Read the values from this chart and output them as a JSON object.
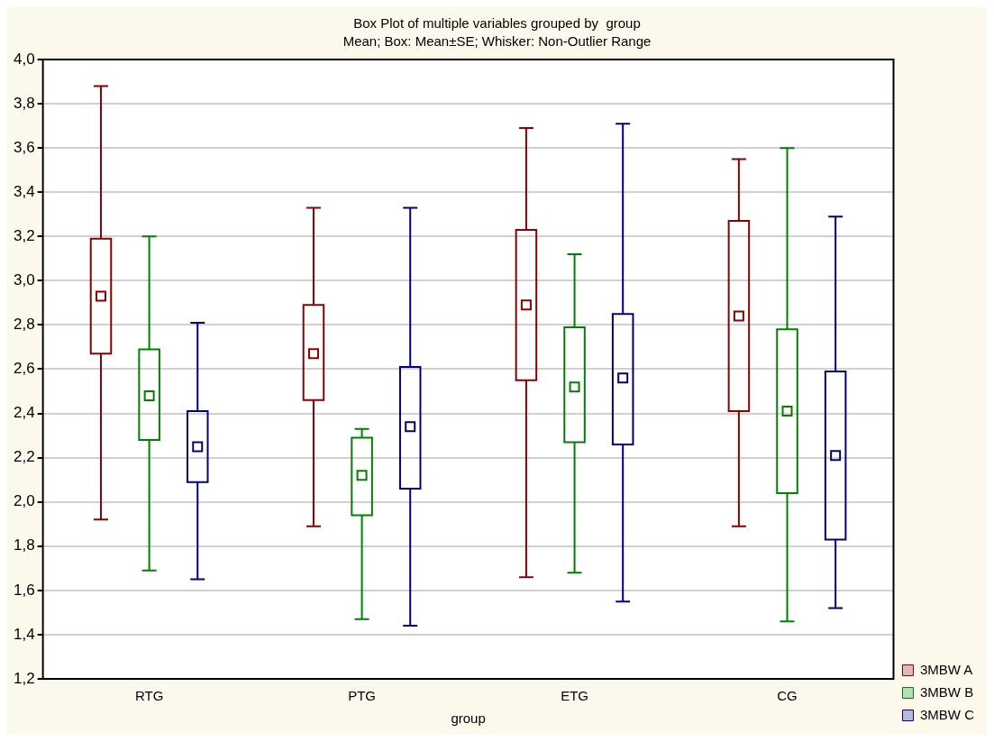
{
  "chart_data": {
    "type": "box",
    "title": "Box Plot of multiple variables grouped by  group",
    "subtitle": "Mean; Box: Mean±SE; Whisker: Non-Outlier Range",
    "xlabel": "group",
    "categories": [
      "RTG",
      "PTG",
      "ETG",
      "CG"
    ],
    "ylim": [
      1.2,
      4.0
    ],
    "yticks": [
      {
        "value": 1.2,
        "label": "1,2"
      },
      {
        "value": 1.4,
        "label": "1,4"
      },
      {
        "value": 1.6,
        "label": "1,6"
      },
      {
        "value": 1.8,
        "label": "1,8"
      },
      {
        "value": 2.0,
        "label": "2,0"
      },
      {
        "value": 2.2,
        "label": "2,2"
      },
      {
        "value": 2.4,
        "label": "2,4"
      },
      {
        "value": 2.6,
        "label": "2,6"
      },
      {
        "value": 2.8,
        "label": "2,8"
      },
      {
        "value": 3.0,
        "label": "3,0"
      },
      {
        "value": 3.2,
        "label": "3,2"
      },
      {
        "value": 3.4,
        "label": "3,4"
      },
      {
        "value": 3.6,
        "label": "3,6"
      },
      {
        "value": 3.8,
        "label": "3,8"
      },
      {
        "value": 4.0,
        "label": "4,0"
      }
    ],
    "grid": "y",
    "legend": "bottom right",
    "marker": "square",
    "series": [
      {
        "name": "3MBW A",
        "color": "#8b0000",
        "boxes": [
          {
            "low": 1.92,
            "q1": 2.67,
            "median": 2.93,
            "q3": 3.19,
            "high": 3.88
          },
          {
            "low": 1.89,
            "q1": 2.46,
            "median": 2.67,
            "q3": 2.89,
            "high": 3.33
          },
          {
            "low": 1.66,
            "q1": 2.55,
            "median": 2.89,
            "q3": 3.23,
            "high": 3.69
          },
          {
            "low": 1.89,
            "q1": 2.41,
            "median": 2.84,
            "q3": 3.27,
            "high": 3.55
          }
        ]
      },
      {
        "name": "3MBW B",
        "color": "#008000",
        "boxes": [
          {
            "low": 1.69,
            "q1": 2.28,
            "median": 2.48,
            "q3": 2.69,
            "high": 3.2
          },
          {
            "low": 1.47,
            "q1": 1.94,
            "median": 2.12,
            "q3": 2.29,
            "high": 2.33
          },
          {
            "low": 1.68,
            "q1": 2.27,
            "median": 2.52,
            "q3": 2.79,
            "high": 3.12
          },
          {
            "low": 1.46,
            "q1": 2.04,
            "median": 2.41,
            "q3": 2.78,
            "high": 3.6
          }
        ]
      },
      {
        "name": "3MBW C",
        "color": "#000080",
        "boxes": [
          {
            "low": 1.65,
            "q1": 2.09,
            "median": 2.25,
            "q3": 2.41,
            "high": 2.81
          },
          {
            "low": 1.44,
            "q1": 2.06,
            "median": 2.34,
            "q3": 2.61,
            "high": 3.33
          },
          {
            "low": 1.55,
            "q1": 2.26,
            "median": 2.56,
            "q3": 2.85,
            "high": 3.71
          },
          {
            "low": 1.52,
            "q1": 1.83,
            "median": 2.21,
            "q3": 2.59,
            "high": 3.29
          }
        ]
      }
    ]
  }
}
